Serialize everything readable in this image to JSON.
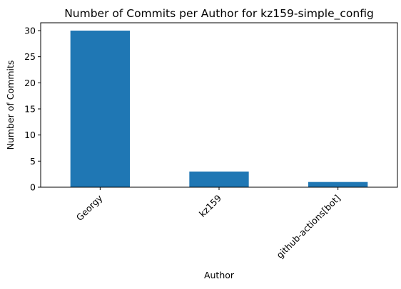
{
  "chart_data": {
    "type": "bar",
    "title": "Number of Commits per Author for kz159-simple_config",
    "xlabel": "Author",
    "ylabel": "Number of Commits",
    "categories": [
      "Georgy",
      "kz159",
      "github-actions[bot]"
    ],
    "values": [
      30,
      3,
      1
    ],
    "ylim": [
      0,
      31.5
    ],
    "yticks": [
      0,
      5,
      10,
      15,
      20,
      25,
      30
    ],
    "bar_color": "#1f77b4",
    "grid": false,
    "legend": "none"
  }
}
